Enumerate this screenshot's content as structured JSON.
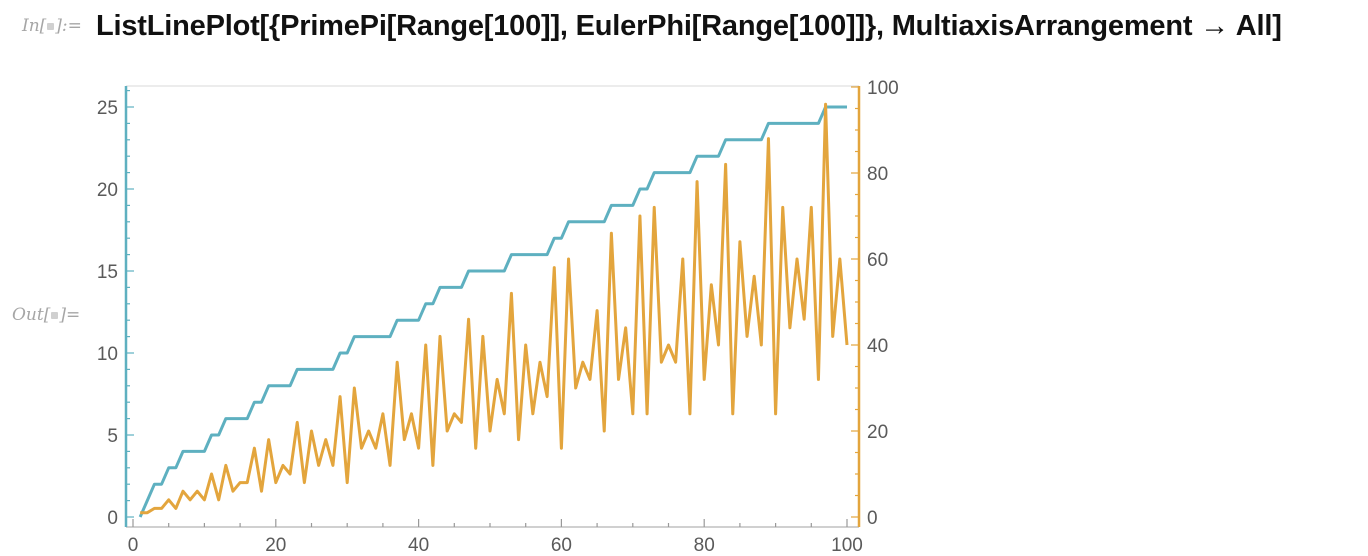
{
  "notebook": {
    "input_label": "In[",
    "input_label_end": "]:=",
    "output_label": "Out[",
    "output_label_end": "]=",
    "input_code": "ListLinePlot[{PrimePi[Range[100]],  EulerPhi[Range[100]]}, MultiaxisArrangement → All]"
  },
  "colors": {
    "series1": "#5eb0c0",
    "series2": "#e3a53d",
    "background": "#ffffff"
  },
  "chart_data": {
    "type": "line",
    "title": "",
    "xlabel": "",
    "ylabel": "",
    "xlim": [
      0,
      100
    ],
    "left_axis": {
      "ylim": [
        0,
        25
      ],
      "ticks": [
        "0",
        "5",
        "10",
        "15",
        "20",
        "25"
      ]
    },
    "right_axis": {
      "ylim": [
        0,
        100
      ],
      "ticks": [
        "0",
        "20",
        "40",
        "60",
        "80",
        "100"
      ]
    },
    "x_ticks": [
      "0",
      "20",
      "40",
      "60",
      "80",
      "100"
    ],
    "x": [
      1,
      2,
      3,
      4,
      5,
      6,
      7,
      8,
      9,
      10,
      11,
      12,
      13,
      14,
      15,
      16,
      17,
      18,
      19,
      20,
      21,
      22,
      23,
      24,
      25,
      26,
      27,
      28,
      29,
      30,
      31,
      32,
      33,
      34,
      35,
      36,
      37,
      38,
      39,
      40,
      41,
      42,
      43,
      44,
      45,
      46,
      47,
      48,
      49,
      50,
      51,
      52,
      53,
      54,
      55,
      56,
      57,
      58,
      59,
      60,
      61,
      62,
      63,
      64,
      65,
      66,
      67,
      68,
      69,
      70,
      71,
      72,
      73,
      74,
      75,
      76,
      77,
      78,
      79,
      80,
      81,
      82,
      83,
      84,
      85,
      86,
      87,
      88,
      89,
      90,
      91,
      92,
      93,
      94,
      95,
      96,
      97,
      98,
      99,
      100
    ],
    "series": [
      {
        "axis": "left",
        "values": [
          0,
          1,
          2,
          2,
          3,
          3,
          4,
          4,
          4,
          4,
          5,
          5,
          6,
          6,
          6,
          6,
          7,
          7,
          8,
          8,
          8,
          8,
          9,
          9,
          9,
          9,
          9,
          9,
          10,
          10,
          11,
          11,
          11,
          11,
          11,
          11,
          12,
          12,
          12,
          12,
          13,
          13,
          14,
          14,
          14,
          14,
          15,
          15,
          15,
          15,
          15,
          15,
          16,
          16,
          16,
          16,
          16,
          16,
          17,
          17,
          18,
          18,
          18,
          18,
          18,
          18,
          19,
          19,
          19,
          19,
          20,
          20,
          21,
          21,
          21,
          21,
          21,
          21,
          22,
          22,
          22,
          22,
          23,
          23,
          23,
          23,
          23,
          23,
          24,
          24,
          24,
          24,
          24,
          24,
          24,
          24,
          25,
          25,
          25,
          25
        ]
      },
      {
        "axis": "right",
        "values": [
          1,
          1,
          2,
          2,
          4,
          2,
          6,
          4,
          6,
          4,
          10,
          4,
          12,
          6,
          8,
          8,
          16,
          6,
          18,
          8,
          12,
          10,
          22,
          8,
          20,
          12,
          18,
          12,
          28,
          8,
          30,
          16,
          20,
          16,
          24,
          12,
          36,
          18,
          24,
          16,
          40,
          12,
          42,
          20,
          24,
          22,
          46,
          16,
          42,
          20,
          32,
          24,
          52,
          18,
          40,
          24,
          36,
          28,
          58,
          16,
          60,
          30,
          36,
          32,
          48,
          20,
          66,
          32,
          44,
          24,
          70,
          24,
          72,
          36,
          40,
          36,
          60,
          24,
          78,
          32,
          54,
          40,
          82,
          24,
          64,
          42,
          56,
          40,
          88,
          24,
          72,
          44,
          60,
          46,
          72,
          32,
          96,
          42,
          60,
          40
        ]
      }
    ]
  }
}
